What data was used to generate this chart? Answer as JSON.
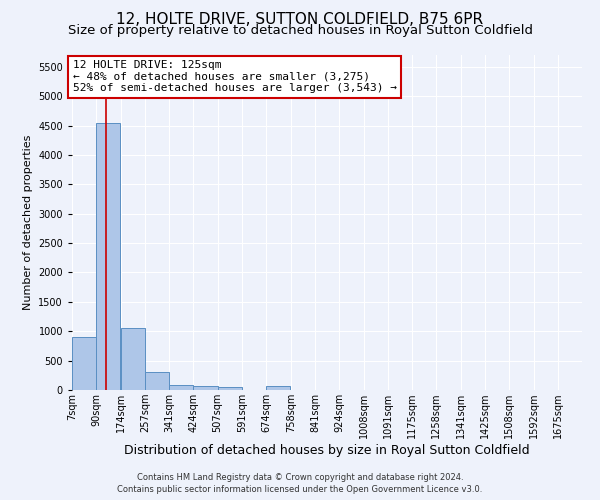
{
  "title": "12, HOLTE DRIVE, SUTTON COLDFIELD, B75 6PR",
  "subtitle": "Size of property relative to detached houses in Royal Sutton Coldfield",
  "xlabel": "Distribution of detached houses by size in Royal Sutton Coldfield",
  "ylabel": "Number of detached properties",
  "footer1": "Contains HM Land Registry data © Crown copyright and database right 2024.",
  "footer2": "Contains public sector information licensed under the Open Government Licence v3.0.",
  "bin_labels": [
    "7sqm",
    "90sqm",
    "174sqm",
    "257sqm",
    "341sqm",
    "424sqm",
    "507sqm",
    "591sqm",
    "674sqm",
    "758sqm",
    "841sqm",
    "924sqm",
    "1008sqm",
    "1091sqm",
    "1175sqm",
    "1258sqm",
    "1341sqm",
    "1425sqm",
    "1508sqm",
    "1592sqm",
    "1675sqm"
  ],
  "bin_edges": [
    7,
    90,
    174,
    257,
    341,
    424,
    507,
    591,
    674,
    758,
    841,
    924,
    1008,
    1091,
    1175,
    1258,
    1341,
    1425,
    1508,
    1592,
    1675
  ],
  "bar_heights": [
    900,
    4550,
    1050,
    300,
    80,
    60,
    50,
    0,
    60,
    0,
    0,
    0,
    0,
    0,
    0,
    0,
    0,
    0,
    0,
    0
  ],
  "bar_color": "#aec6e8",
  "bar_edge_color": "#5a8fc3",
  "property_size": 125,
  "red_line_color": "#cc0000",
  "annotation_line1": "12 HOLTE DRIVE: 125sqm",
  "annotation_line2": "← 48% of detached houses are smaller (3,275)",
  "annotation_line3": "52% of semi-detached houses are larger (3,543) →",
  "annotation_box_color": "#ffffff",
  "annotation_box_edge": "#cc0000",
  "ylim": [
    0,
    5700
  ],
  "yticks": [
    0,
    500,
    1000,
    1500,
    2000,
    2500,
    3000,
    3500,
    4000,
    4500,
    5000,
    5500
  ],
  "background_color": "#eef2fb",
  "grid_color": "#ffffff",
  "title_fontsize": 11,
  "subtitle_fontsize": 9.5,
  "xlabel_fontsize": 9,
  "ylabel_fontsize": 8,
  "tick_fontsize": 7,
  "annotation_fontsize": 8,
  "footer_fontsize": 6
}
